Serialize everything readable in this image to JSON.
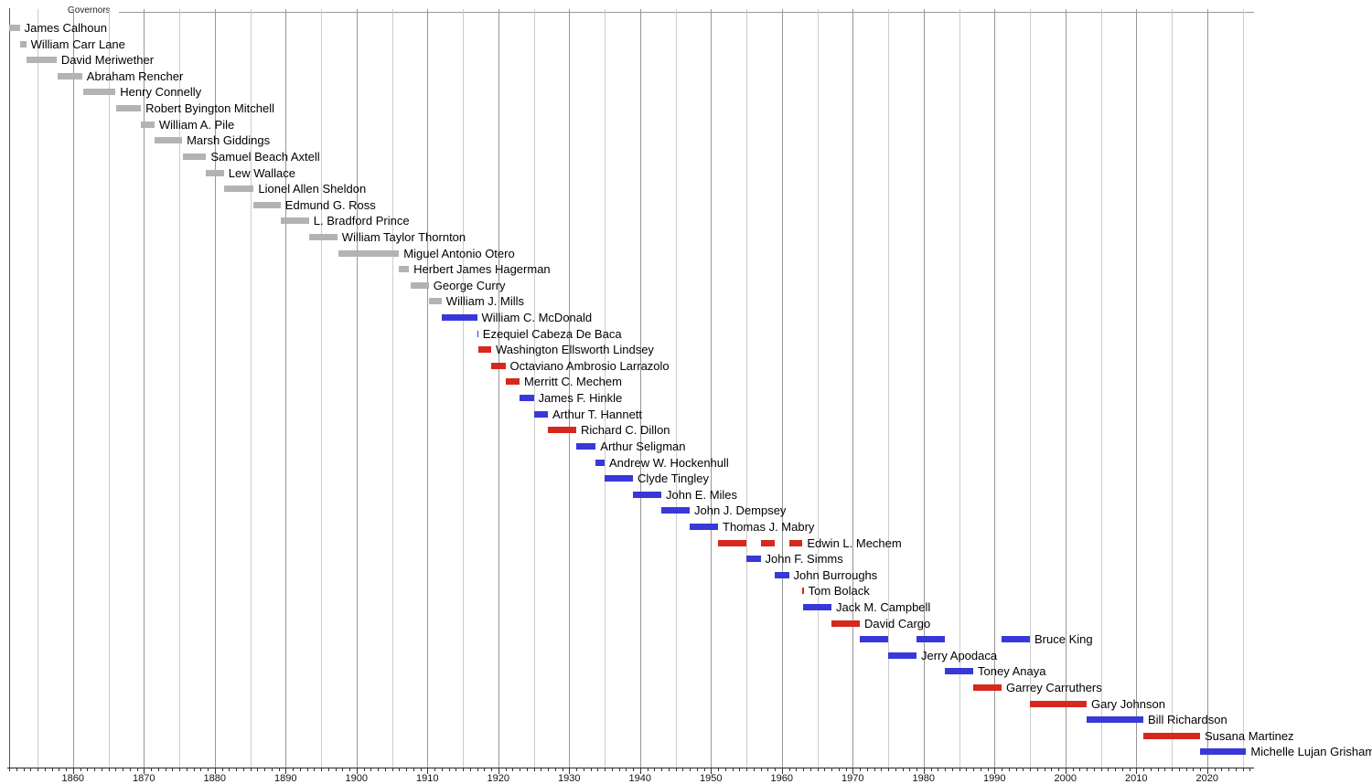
{
  "title": "Governors",
  "colors": {
    "territorial": "#b3b3b3",
    "democratic": "#3838d8",
    "republican": "#d6281e",
    "grid_minor": "#cccccc",
    "grid_major": "#979797",
    "start_edge": "#555555",
    "top_rule": "#999999",
    "axis_line": "#222222",
    "tick": "#333333",
    "text": "#000000",
    "background": "#ffffff"
  },
  "chart_data": {
    "type": "timeline",
    "title": "Governors",
    "x_axis": {
      "start": 1851,
      "end": 2026.5,
      "minor_tick_interval": 1,
      "grid_interval": 5,
      "major_tick_interval": 10,
      "tick_labels": [
        "1860",
        "1870",
        "1880",
        "1890",
        "1900",
        "1910",
        "1920",
        "1930",
        "1940",
        "1950",
        "1960",
        "1970",
        "1980",
        "1990",
        "2000",
        "2010",
        "2020"
      ]
    },
    "governors": [
      {
        "name": "James Calhoun",
        "party": "territorial",
        "terms": [
          [
            1851.0,
            1852.5
          ]
        ]
      },
      {
        "name": "William Carr Lane",
        "party": "territorial",
        "terms": [
          [
            1852.5,
            1853.4
          ]
        ]
      },
      {
        "name": "David Meriwether",
        "party": "territorial",
        "terms": [
          [
            1853.4,
            1857.7
          ]
        ]
      },
      {
        "name": "Abraham Rencher",
        "party": "territorial",
        "terms": [
          [
            1857.8,
            1861.3
          ]
        ]
      },
      {
        "name": "Henry Connelly",
        "party": "territorial",
        "terms": [
          [
            1861.4,
            1866.0
          ]
        ]
      },
      {
        "name": "Robert Byington Mitchell",
        "party": "territorial",
        "terms": [
          [
            1866.1,
            1869.6
          ]
        ]
      },
      {
        "name": "William A. Pile",
        "party": "territorial",
        "terms": [
          [
            1869.6,
            1871.5
          ]
        ]
      },
      {
        "name": "Marsh Giddings",
        "party": "territorial",
        "terms": [
          [
            1871.5,
            1875.4
          ]
        ]
      },
      {
        "name": "Samuel Beach Axtell",
        "party": "territorial",
        "terms": [
          [
            1875.5,
            1878.8
          ]
        ]
      },
      {
        "name": "Lew Wallace",
        "party": "territorial",
        "terms": [
          [
            1878.8,
            1881.3
          ]
        ]
      },
      {
        "name": "Lionel Allen Sheldon",
        "party": "territorial",
        "terms": [
          [
            1881.3,
            1885.5
          ]
        ]
      },
      {
        "name": "Edmund G. Ross",
        "party": "territorial",
        "terms": [
          [
            1885.5,
            1889.3
          ]
        ]
      },
      {
        "name": "L. Bradford Prince",
        "party": "territorial",
        "terms": [
          [
            1889.3,
            1893.3
          ]
        ]
      },
      {
        "name": "William Taylor Thornton",
        "party": "territorial",
        "terms": [
          [
            1893.3,
            1897.3
          ]
        ]
      },
      {
        "name": "Miguel Antonio Otero",
        "party": "territorial",
        "terms": [
          [
            1897.4,
            1906.0
          ]
        ]
      },
      {
        "name": "Herbert James Hagerman",
        "party": "territorial",
        "terms": [
          [
            1906.0,
            1907.4
          ]
        ]
      },
      {
        "name": "George Curry",
        "party": "territorial",
        "terms": [
          [
            1907.6,
            1910.2
          ]
        ]
      },
      {
        "name": "William J. Mills",
        "party": "territorial",
        "terms": [
          [
            1910.2,
            1912.0
          ]
        ]
      },
      {
        "name": "William C. McDonald",
        "party": "democratic",
        "terms": [
          [
            1912.0,
            1917.0
          ]
        ]
      },
      {
        "name": "Ezequiel Cabeza De Baca",
        "party": "democratic",
        "terms": [
          [
            1917.0,
            1917.17
          ]
        ]
      },
      {
        "name": "Washington Ellsworth Lindsey",
        "party": "republican",
        "terms": [
          [
            1917.17,
            1919.0
          ]
        ]
      },
      {
        "name": "Octaviano Ambrosio Larrazolo",
        "party": "republican",
        "terms": [
          [
            1919.0,
            1921.0
          ]
        ]
      },
      {
        "name": "Merritt C. Mechem",
        "party": "republican",
        "terms": [
          [
            1921.0,
            1923.0
          ]
        ]
      },
      {
        "name": "James F. Hinkle",
        "party": "democratic",
        "terms": [
          [
            1923.0,
            1925.0
          ]
        ]
      },
      {
        "name": "Arthur T. Hannett",
        "party": "democratic",
        "terms": [
          [
            1925.0,
            1927.0
          ]
        ]
      },
      {
        "name": "Richard C. Dillon",
        "party": "republican",
        "terms": [
          [
            1927.0,
            1931.0
          ]
        ]
      },
      {
        "name": "Arthur Seligman",
        "party": "democratic",
        "terms": [
          [
            1931.0,
            1933.75
          ]
        ]
      },
      {
        "name": "Andrew W. Hockenhull",
        "party": "democratic",
        "terms": [
          [
            1933.75,
            1935.0
          ]
        ]
      },
      {
        "name": "Clyde Tingley",
        "party": "democratic",
        "terms": [
          [
            1935.0,
            1939.0
          ]
        ]
      },
      {
        "name": "John E. Miles",
        "party": "democratic",
        "terms": [
          [
            1939.0,
            1943.0
          ]
        ]
      },
      {
        "name": "John J. Dempsey",
        "party": "democratic",
        "terms": [
          [
            1943.0,
            1947.0
          ]
        ]
      },
      {
        "name": "Thomas J. Mabry",
        "party": "democratic",
        "terms": [
          [
            1947.0,
            1951.0
          ]
        ]
      },
      {
        "name": "Edwin L. Mechem",
        "party": "republican",
        "terms": [
          [
            1951.0,
            1955.0
          ],
          [
            1957.0,
            1959.0
          ],
          [
            1961.0,
            1962.92
          ]
        ]
      },
      {
        "name": "John F. Simms",
        "party": "democratic",
        "terms": [
          [
            1955.0,
            1957.0
          ]
        ]
      },
      {
        "name": "John Burroughs",
        "party": "democratic",
        "terms": [
          [
            1959.0,
            1961.0
          ]
        ]
      },
      {
        "name": "Tom Bolack",
        "party": "republican",
        "terms": [
          [
            1962.92,
            1963.08
          ]
        ]
      },
      {
        "name": "Jack M. Campbell",
        "party": "democratic",
        "terms": [
          [
            1963.0,
            1967.0
          ]
        ]
      },
      {
        "name": "David Cargo",
        "party": "republican",
        "terms": [
          [
            1967.0,
            1971.0
          ]
        ]
      },
      {
        "name": "Bruce King",
        "party": "democratic",
        "terms": [
          [
            1971.0,
            1975.0
          ],
          [
            1979.0,
            1983.0
          ],
          [
            1991.0,
            1995.0
          ]
        ]
      },
      {
        "name": "Jerry Apodaca",
        "party": "democratic",
        "terms": [
          [
            1975.0,
            1979.0
          ]
        ]
      },
      {
        "name": "Toney Anaya",
        "party": "democratic",
        "terms": [
          [
            1983.0,
            1987.0
          ]
        ]
      },
      {
        "name": "Garrey Carruthers",
        "party": "republican",
        "terms": [
          [
            1987.0,
            1991.0
          ]
        ]
      },
      {
        "name": "Gary Johnson",
        "party": "republican",
        "terms": [
          [
            1995.0,
            2003.0
          ]
        ]
      },
      {
        "name": "Bill Richardson",
        "party": "democratic",
        "terms": [
          [
            2003.0,
            2011.0
          ]
        ]
      },
      {
        "name": "Susana Martinez",
        "party": "republican",
        "terms": [
          [
            2011.0,
            2019.0
          ]
        ]
      },
      {
        "name": "Michelle Lujan Grisham",
        "party": "democratic",
        "terms": [
          [
            2019.0,
            2025.5
          ]
        ]
      }
    ]
  }
}
